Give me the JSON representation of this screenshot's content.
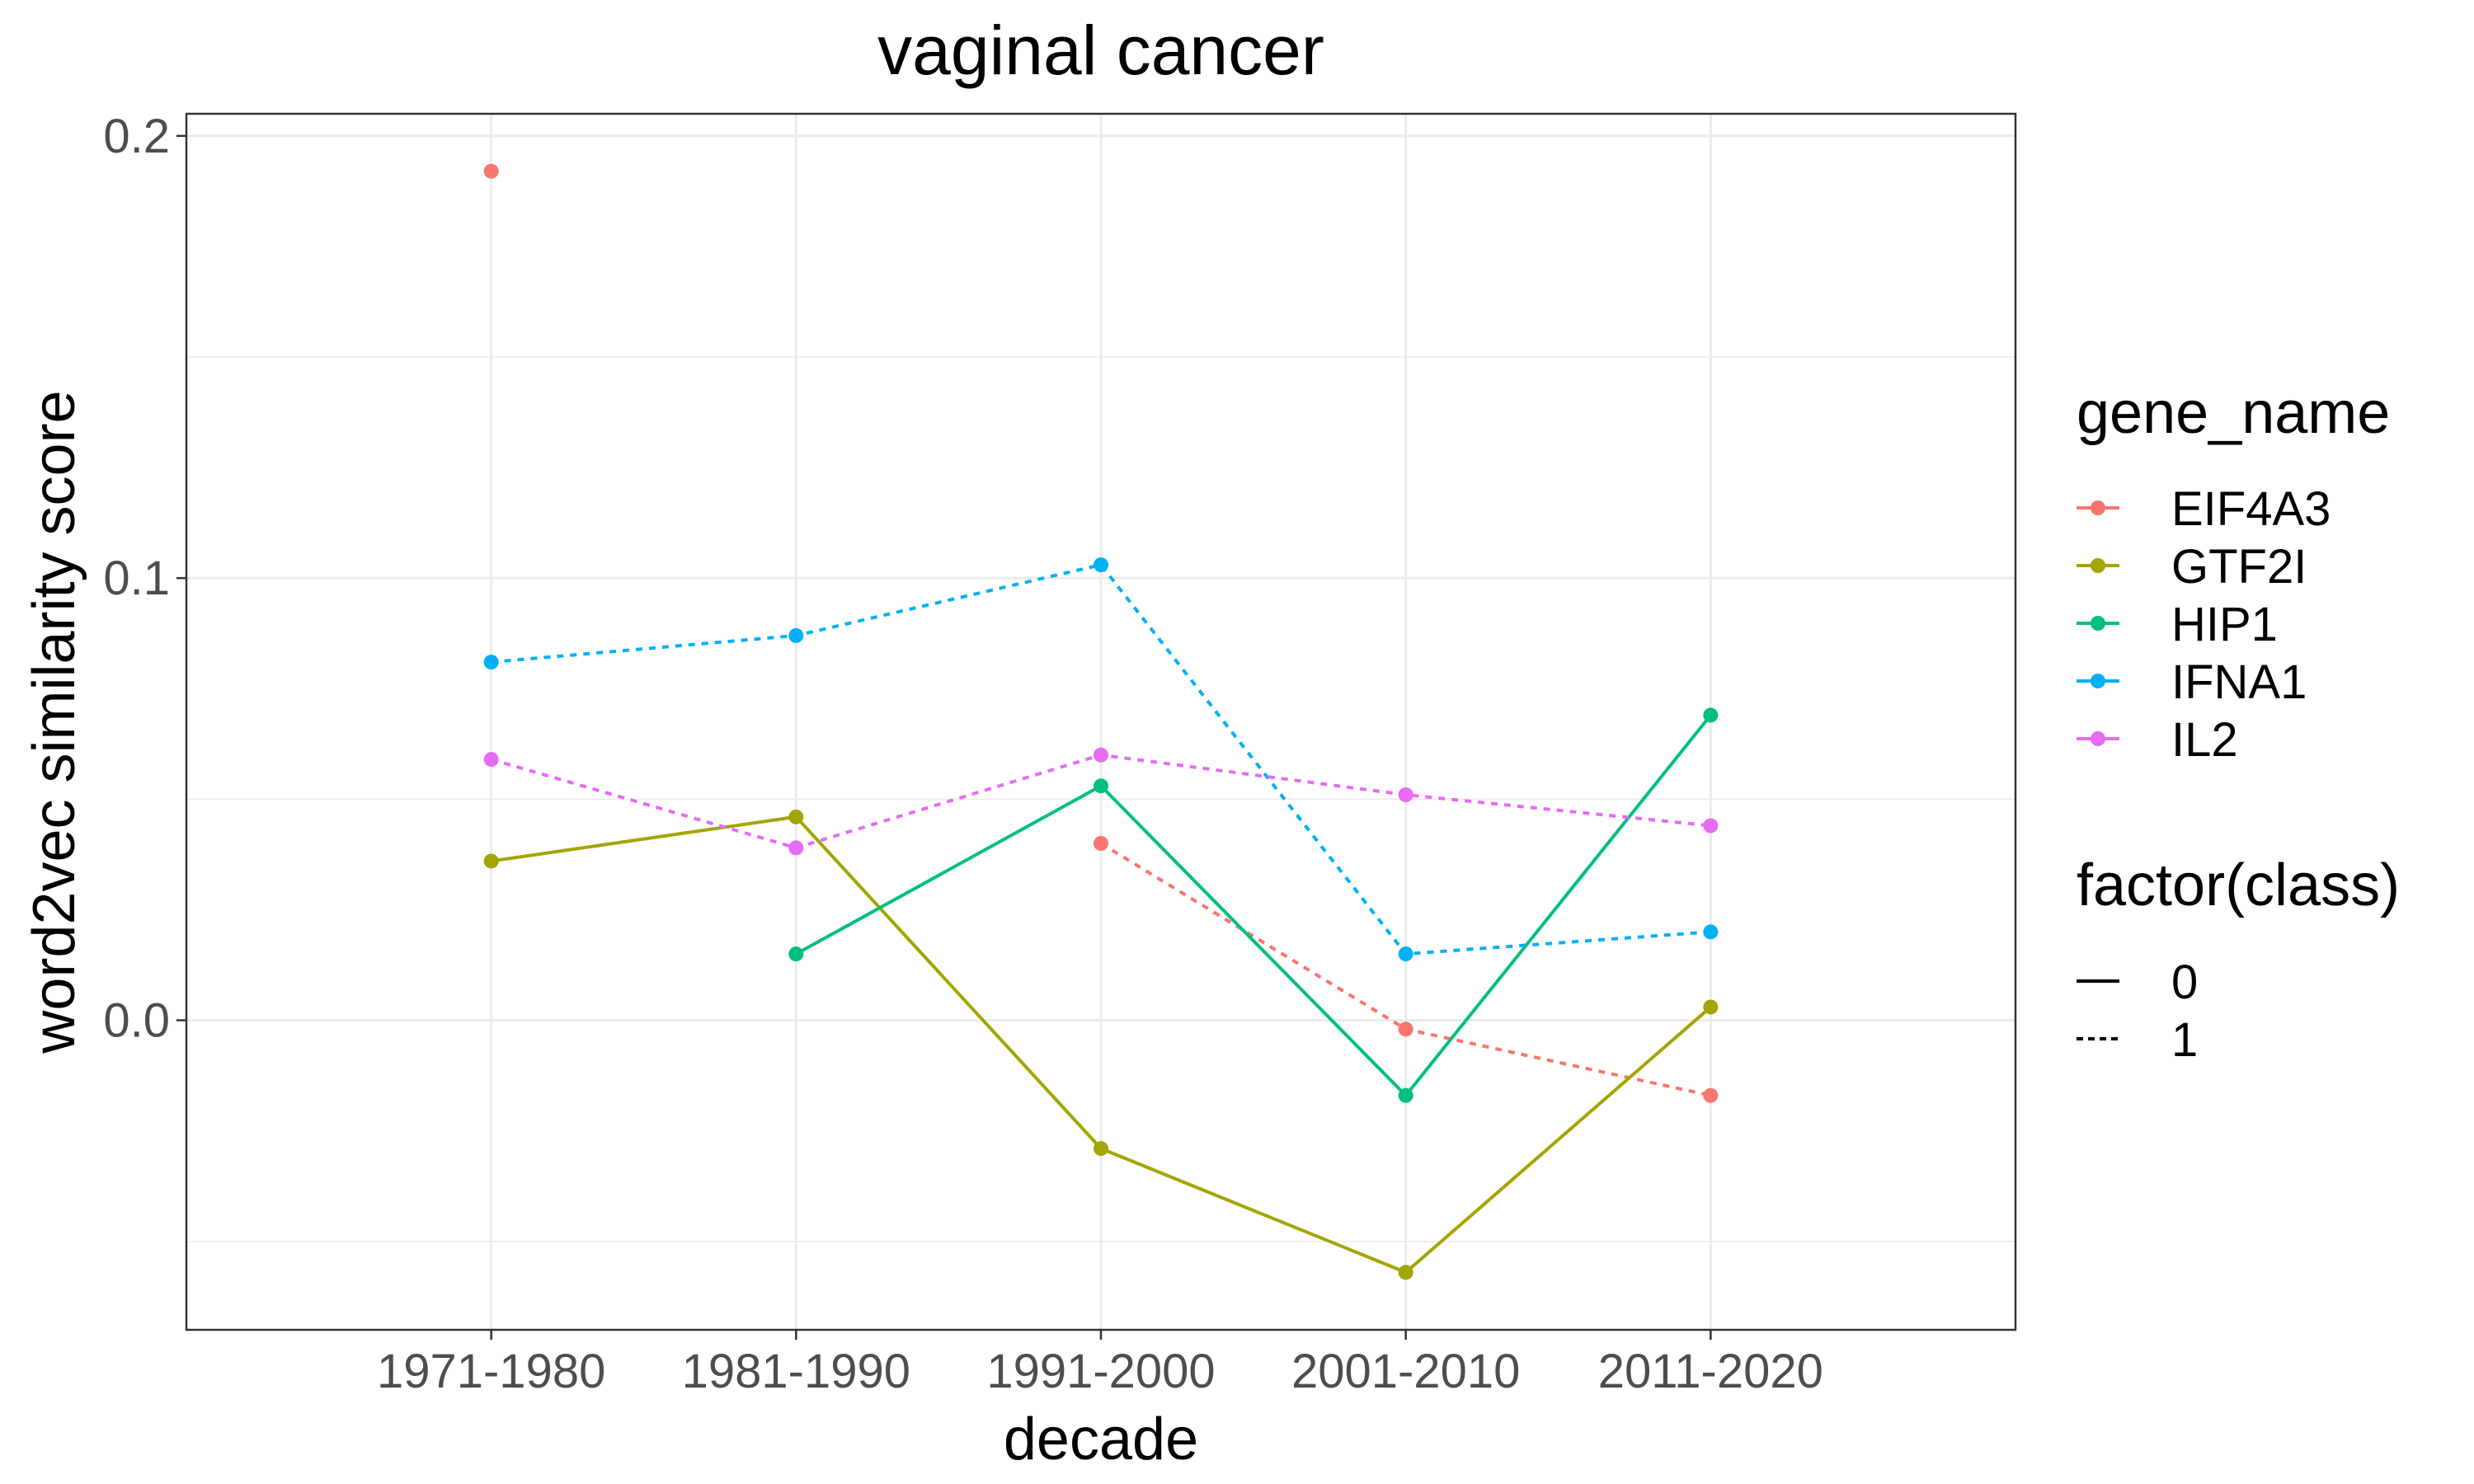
{
  "chart_data": {
    "type": "line",
    "title": "vaginal cancer",
    "xlabel": "decade",
    "ylabel": "word2vec similarity score",
    "categories": [
      "1971-1980",
      "1981-1990",
      "1991-2000",
      "2001-2010",
      "2011-2020"
    ],
    "ylim": [
      -0.07,
      0.205
    ],
    "y_ticks": [
      0.0,
      0.1,
      0.2
    ],
    "y_tick_labels": [
      "0.0",
      "0.1",
      "0.2"
    ],
    "grid": true,
    "legend_position": "right",
    "legend_color_title": "gene_name",
    "legend_linetype_title": "factor(class)",
    "linetype_entries": [
      {
        "label": "0",
        "dash": "solid"
      },
      {
        "label": "1",
        "dash": "dotted"
      }
    ],
    "series": [
      {
        "name": "EIF4A3",
        "color": "#F8766D",
        "class": "1",
        "values": [
          0.192,
          null,
          0.04,
          -0.002,
          -0.017
        ]
      },
      {
        "name": "GTF2I",
        "color": "#A3A500",
        "class": "0",
        "values": [
          0.036,
          0.046,
          -0.029,
          -0.057,
          0.003
        ]
      },
      {
        "name": "HIP1",
        "color": "#00BF7D",
        "class": "0",
        "values": [
          null,
          0.015,
          0.053,
          -0.017,
          0.069
        ]
      },
      {
        "name": "IFNA1",
        "color": "#00B0F6",
        "class": "1",
        "values": [
          0.081,
          0.087,
          0.103,
          0.015,
          0.02
        ]
      },
      {
        "name": "IL2",
        "color": "#E76BF3",
        "class": "1",
        "values": [
          0.059,
          0.039,
          0.06,
          0.051,
          0.044
        ]
      }
    ]
  }
}
